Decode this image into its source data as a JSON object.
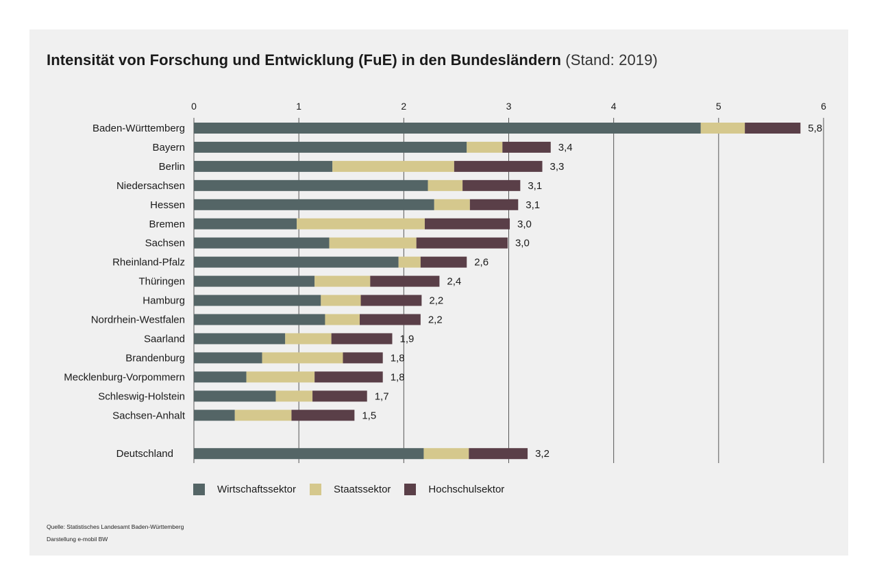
{
  "title": {
    "main": "Intensität von Forschung und Entwicklung (FuE) in den Bundesländern",
    "sub": "(Stand: 2019)"
  },
  "colors": {
    "Wirtschaftssektor": "#546566",
    "Staatssektor": "#d5c88d",
    "Hochschulsektor": "#5a3f48",
    "grid": "#555555",
    "panel": "#f0f0f0"
  },
  "chart_data": {
    "type": "bar",
    "orientation": "horizontal",
    "stacked": true,
    "xlim": [
      0,
      6
    ],
    "xticks": [
      0,
      1,
      2,
      3,
      4,
      5,
      6
    ],
    "grid": true,
    "legend_position": "bottom",
    "categories": [
      "Baden-Württemberg",
      "Bayern",
      "Berlin",
      "Niedersachsen",
      "Hessen",
      "Bremen",
      "Sachsen",
      "Rheinland-Pfalz",
      "Thüringen",
      "Hamburg",
      "Nordrhein-Westfalen",
      "Saarland",
      "Brandenburg",
      "Mecklenburg-Vorpommern",
      "Schleswig-Holstein",
      "Sachsen-Anhalt",
      "Deutschland"
    ],
    "series": [
      {
        "name": "Wirtschaftssektor",
        "values": [
          4.83,
          2.6,
          1.32,
          2.23,
          2.29,
          0.98,
          1.29,
          1.95,
          1.15,
          1.21,
          1.25,
          0.87,
          0.65,
          0.5,
          0.78,
          0.39,
          2.19
        ]
      },
      {
        "name": "Staatssektor",
        "values": [
          0.42,
          0.34,
          1.16,
          0.33,
          0.34,
          1.22,
          0.83,
          0.21,
          0.53,
          0.38,
          0.33,
          0.44,
          0.77,
          0.65,
          0.35,
          0.54,
          0.43
        ]
      },
      {
        "name": "Hochschulsektor",
        "values": [
          0.53,
          0.46,
          0.84,
          0.55,
          0.46,
          0.81,
          0.87,
          0.44,
          0.66,
          0.58,
          0.58,
          0.58,
          0.38,
          0.65,
          0.52,
          0.6,
          0.56
        ]
      }
    ],
    "totals_labels": [
      "5,8",
      "3,4",
      "3,3",
      "3,1",
      "3,1",
      "3,0",
      "3,0",
      "2,6",
      "2,4",
      "2,2",
      "2,2",
      "1,9",
      "1,8",
      "1,8",
      "1,7",
      "1,5",
      "3,2"
    ]
  },
  "source": {
    "line1": "Quelle: Statistisches Landesamt Baden-Württemberg",
    "line2": "Darstellung e-mobil BW"
  }
}
